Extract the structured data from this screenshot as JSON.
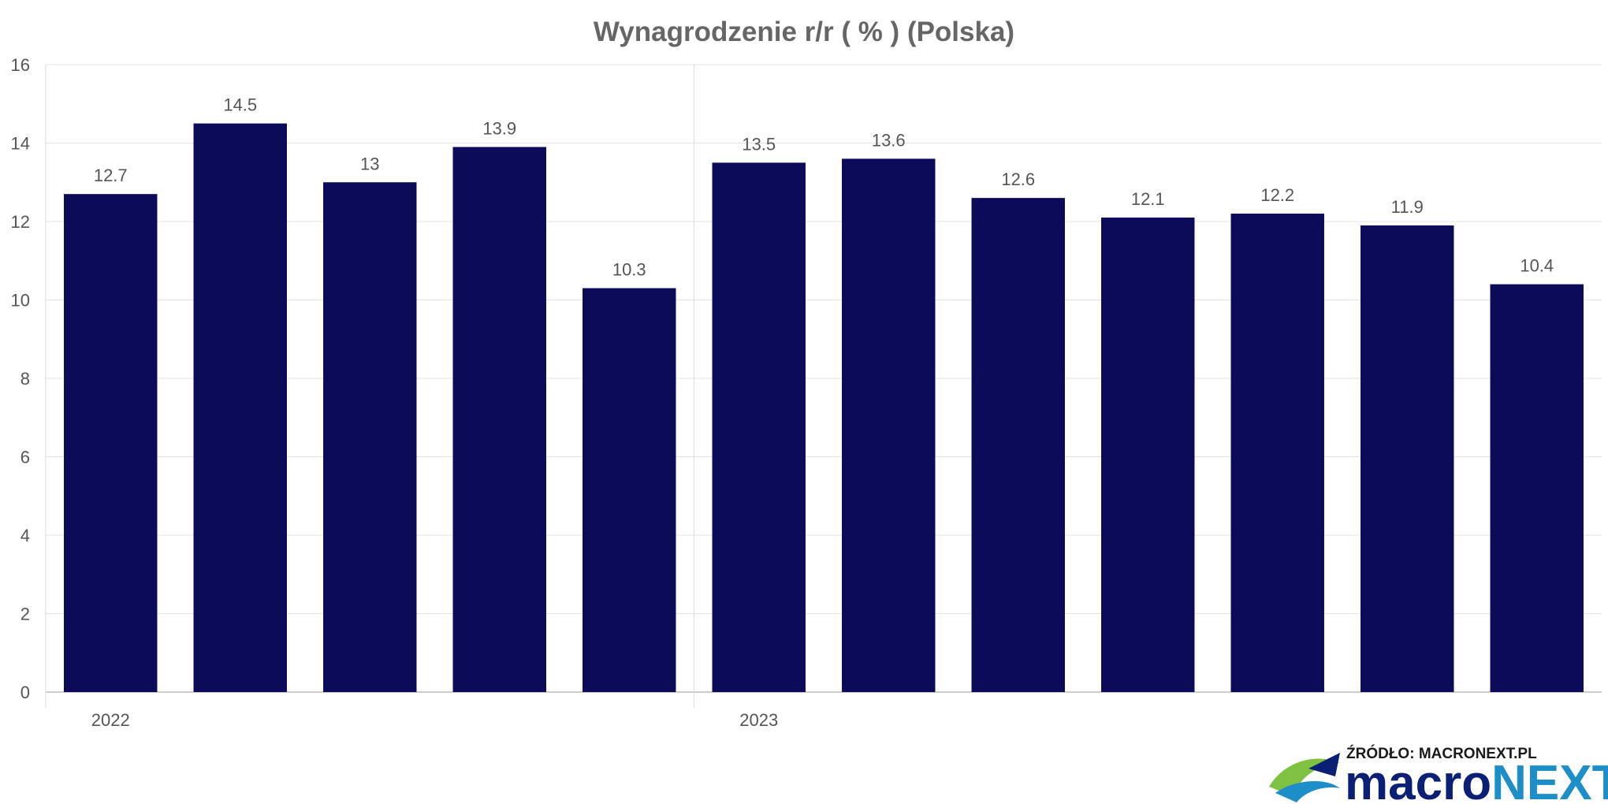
{
  "chart_data": {
    "type": "bar",
    "title": "Wynagrodzenie r/r ( % ) (Polska)",
    "values": [
      12.7,
      14.5,
      13,
      13.9,
      10.3,
      13.5,
      13.6,
      12.6,
      12.1,
      12.2,
      11.9,
      10.4
    ],
    "data_labels": [
      "12.7",
      "14.5",
      "13",
      "13.9",
      "10.3",
      "13.5",
      "13.6",
      "12.6",
      "12.1",
      "12.2",
      "11.9",
      "10.4"
    ],
    "x_group_labels": [
      {
        "label": "2022",
        "start_index": 0
      },
      {
        "label": "2023",
        "start_index": 5
      }
    ],
    "ylim": [
      0,
      16
    ],
    "y_ticks": [
      "0",
      "2",
      "4",
      "6",
      "8",
      "10",
      "12",
      "14",
      "16"
    ],
    "xlabel": "",
    "ylabel": "",
    "grid": true,
    "bar_color": "#0b0b5a"
  },
  "branding": {
    "source_label": "ŹRÓDŁO: MACRONEXT.PL",
    "logo_part1": "macro",
    "logo_part2": "NEXT",
    "logo_color_1": "#0b1f74",
    "logo_color_2": "#1d8ec7",
    "logo_icon_colors": [
      "#7fc241",
      "#1d8ec7",
      "#0b1f74"
    ]
  }
}
